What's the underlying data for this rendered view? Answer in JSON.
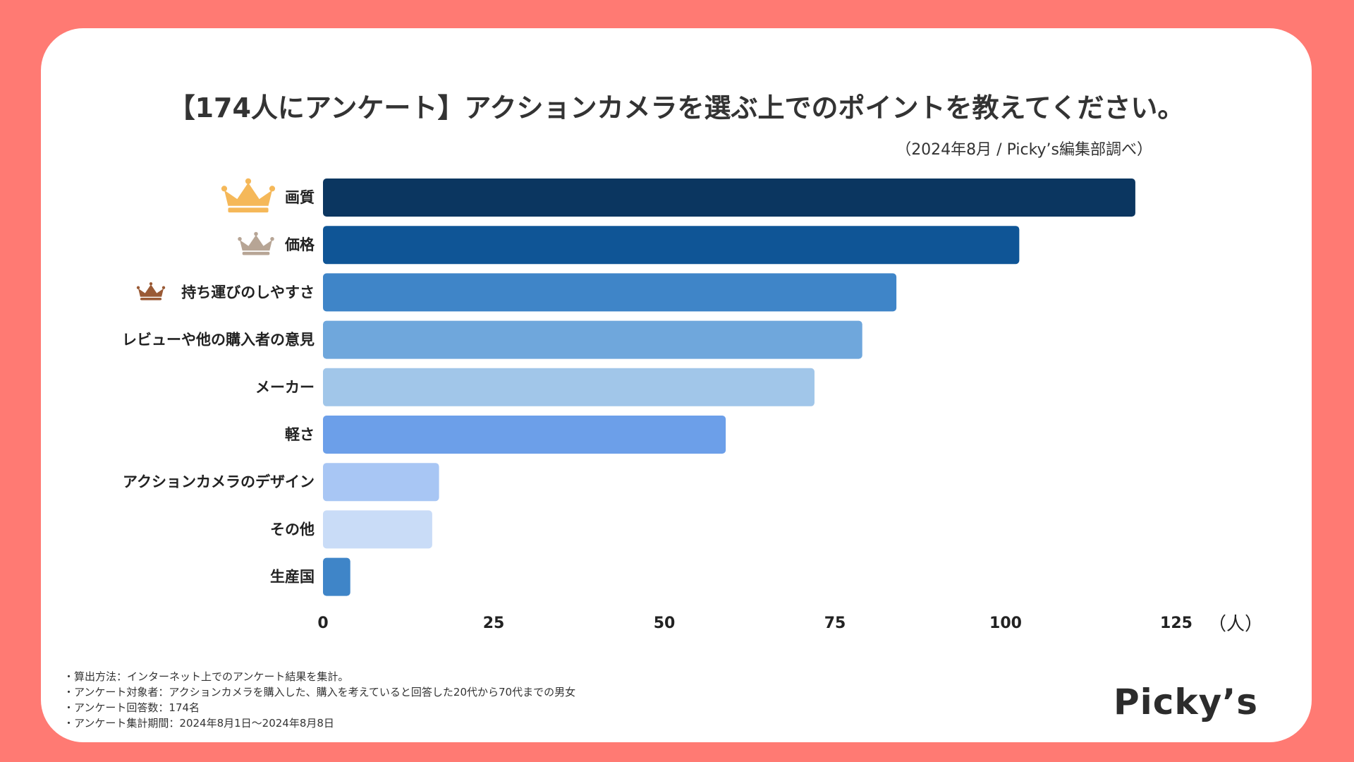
{
  "chart_data": {
    "type": "bar",
    "orientation": "horizontal",
    "title": "【174人にアンケート】アクションカメラを選ぶ上でのポイントを教えてください。",
    "subtitle": "（2024年8月 / Picky’s編集部調べ）",
    "categories": [
      "画質",
      "価格",
      "持ち運びのしやすさ",
      "レビューや他の購入者の意見",
      "メーカー",
      "軽さ",
      "アクションカメラのデザイン",
      "その他",
      "生産国"
    ],
    "values": [
      119,
      102,
      84,
      79,
      72,
      59,
      17,
      16,
      4
    ],
    "bar_colors": [
      "#0b3660",
      "#0f5596",
      "#3f85c8",
      "#6fa7dc",
      "#a1c6e9",
      "#6c9fe9",
      "#a8c6f4",
      "#c9dcf7",
      "#3f85c8"
    ],
    "rank_icons": [
      {
        "name": "crown-gold-icon",
        "color": "#f5b859"
      },
      {
        "name": "crown-silver-icon",
        "color": "#b7a595"
      },
      {
        "name": "crown-bronze-icon",
        "color": "#9a5a35"
      }
    ],
    "xlim": [
      0,
      125
    ],
    "xticks": [
      "0",
      "25",
      "50",
      "75",
      "100",
      "125"
    ],
    "xlabel": "（人）",
    "ylabel": "",
    "grid": false,
    "legend": "none"
  },
  "notes": [
    "・算出方法：インターネット上でのアンケート結果を集計。",
    "・アンケート対象者：アクションカメラを購入した、購入を考えていると回答した20代から70代までの男女",
    "・アンケート回答数：174名",
    "・アンケート集計期間：2024年8月1日〜2024年8月8日"
  ],
  "brand": {
    "logo_text": "Picky’s",
    "background_color": "#ff7a73"
  }
}
